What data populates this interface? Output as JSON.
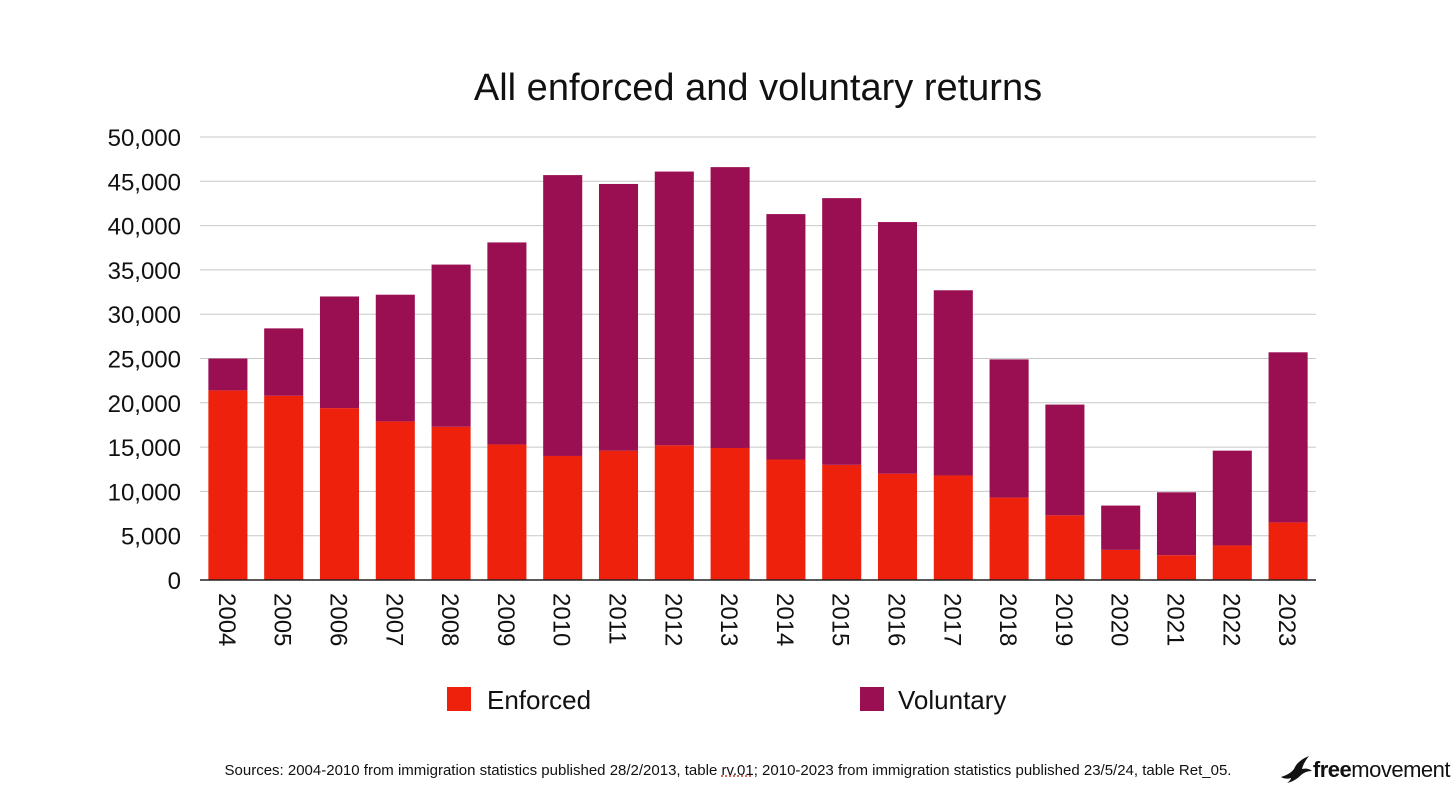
{
  "chart_data": {
    "type": "bar",
    "stacked": true,
    "title": "All enforced and voluntary returns",
    "categories": [
      "2004",
      "2005",
      "2006",
      "2007",
      "2008",
      "2009",
      "2010",
      "2011",
      "2012",
      "2013",
      "2014",
      "2015",
      "2016",
      "2017",
      "2018",
      "2019",
      "2020",
      "2021",
      "2022",
      "2023"
    ],
    "series": [
      {
        "name": "Enforced",
        "color": "#ee220c",
        "values": [
          21400,
          20800,
          19400,
          17900,
          17300,
          15300,
          14000,
          14600,
          15200,
          14900,
          13600,
          13000,
          12000,
          11800,
          9300,
          7300,
          3400,
          2800,
          3900,
          6500
        ]
      },
      {
        "name": "Voluntary",
        "color": "#990f52",
        "values": [
          3600,
          7600,
          12600,
          14300,
          18300,
          22800,
          31700,
          30100,
          30900,
          31700,
          27700,
          30100,
          28400,
          20900,
          15600,
          12500,
          5000,
          7100,
          10700,
          19200
        ]
      }
    ],
    "ylim": [
      0,
      50000
    ],
    "yticks": [
      0,
      5000,
      10000,
      15000,
      20000,
      25000,
      30000,
      35000,
      40000,
      45000,
      50000
    ],
    "ytick_labels": [
      "0",
      "5,000",
      "10,000",
      "15,000",
      "20,000",
      "25,000",
      "30,000",
      "35,000",
      "40,000",
      "45,000",
      "50,000"
    ],
    "grid": true,
    "legend_position": "bottom"
  },
  "footer": {
    "sources_before": "Sources: 2004-2010 from immigration statistics published 28/2/2013, table ",
    "sources_link": "rv.01",
    "sources_after": "; 2010-2023 from immigration statistics published 23/5/24, table Ret_05."
  },
  "logo": {
    "bold": "free",
    "rest": "movement"
  }
}
